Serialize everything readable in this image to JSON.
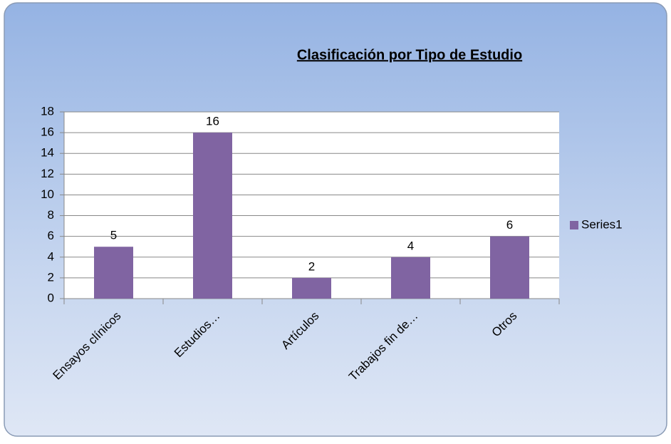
{
  "chart_data": {
    "type": "bar",
    "title": "Clasificación por Tipo de Estudio",
    "categories": [
      "Ensayos clínicos",
      "Estudios…",
      "Artículos",
      "Trabajos fin de…",
      "Otros"
    ],
    "series": [
      {
        "name": "Series1",
        "color": "#8064a2",
        "values": [
          5,
          16,
          2,
          4,
          6
        ]
      }
    ],
    "ylim": [
      0,
      18
    ],
    "yticks": [
      0,
      2,
      4,
      6,
      8,
      10,
      12,
      14,
      16,
      18
    ],
    "grid": true,
    "legend": "right"
  }
}
